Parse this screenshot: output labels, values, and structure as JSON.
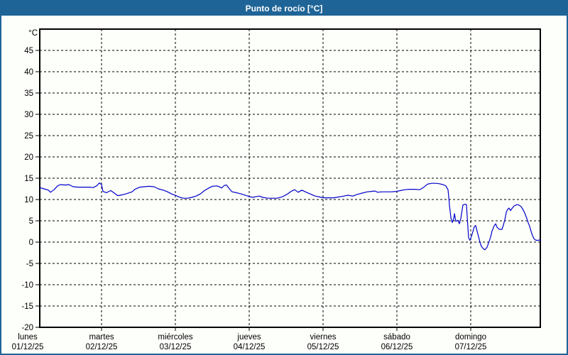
{
  "window": {
    "title": "Punto de rocío [°C]"
  },
  "colors": {
    "titlebar_bg": "#1e6496",
    "titlebar_text": "#ffffff",
    "frame_border": "#1e6496",
    "plot_bg": "#fdfffa",
    "plot_border": "#000000",
    "gridline": "#000000",
    "axis_text": "#000000",
    "line": "#0000cc"
  },
  "chart_data": {
    "type": "line",
    "title": "Punto de rocío [°C]",
    "y_unit_label": "°C",
    "ylim": [
      -20,
      50
    ],
    "y_ticks": [
      45,
      40,
      35,
      30,
      25,
      20,
      15,
      10,
      5,
      0,
      -5,
      -10,
      -15,
      -20
    ],
    "grid": "dashed",
    "legend": "none",
    "x_categories": [
      {
        "name": "lunes",
        "date": "01/12/25"
      },
      {
        "name": "martes",
        "date": "02/12/25"
      },
      {
        "name": "miércoles",
        "date": "03/12/25"
      },
      {
        "name": "jueves",
        "date": "04/12/25"
      },
      {
        "name": "viernes",
        "date": "05/12/25"
      },
      {
        "name": "sábado",
        "date": "06/12/25"
      },
      {
        "name": "domingo",
        "date": "07/12/25"
      }
    ],
    "x_range_days": [
      0.163,
      6.942
    ],
    "series": [
      {
        "name": "Punto de rocío",
        "color": "#0000cc",
        "points": [
          [
            0.163,
            12.8
          ],
          [
            0.221,
            12.5
          ],
          [
            0.279,
            12.2
          ],
          [
            0.308,
            11.7
          ],
          [
            0.356,
            12.3
          ],
          [
            0.404,
            13.2
          ],
          [
            0.442,
            13.5
          ],
          [
            0.51,
            13.4
          ],
          [
            0.558,
            13.5
          ],
          [
            0.615,
            13.0
          ],
          [
            0.683,
            12.9
          ],
          [
            0.76,
            12.9
          ],
          [
            0.827,
            12.9
          ],
          [
            0.885,
            12.8
          ],
          [
            0.933,
            13.2
          ],
          [
            0.971,
            13.9
          ],
          [
            1.0,
            13.5
          ],
          [
            1.019,
            11.9
          ],
          [
            1.067,
            11.6
          ],
          [
            1.125,
            12.1
          ],
          [
            1.173,
            11.5
          ],
          [
            1.221,
            10.9
          ],
          [
            1.279,
            11.1
          ],
          [
            1.346,
            11.4
          ],
          [
            1.413,
            11.8
          ],
          [
            1.452,
            12.4
          ],
          [
            1.519,
            12.9
          ],
          [
            1.577,
            13.0
          ],
          [
            1.644,
            13.1
          ],
          [
            1.712,
            13.0
          ],
          [
            1.769,
            12.5
          ],
          [
            1.837,
            12.2
          ],
          [
            1.894,
            11.8
          ],
          [
            1.962,
            11.2
          ],
          [
            2.0,
            11.0
          ],
          [
            2.048,
            10.6
          ],
          [
            2.106,
            10.3
          ],
          [
            2.163,
            10.3
          ],
          [
            2.221,
            10.5
          ],
          [
            2.279,
            10.8
          ],
          [
            2.337,
            11.3
          ],
          [
            2.394,
            12.1
          ],
          [
            2.452,
            12.7
          ],
          [
            2.5,
            13.1
          ],
          [
            2.558,
            13.2
          ],
          [
            2.596,
            13.0
          ],
          [
            2.625,
            12.7
          ],
          [
            2.663,
            13.3
          ],
          [
            2.692,
            13.4
          ],
          [
            2.731,
            12.5
          ],
          [
            2.769,
            11.8
          ],
          [
            2.827,
            11.6
          ],
          [
            2.894,
            11.3
          ],
          [
            2.962,
            10.9
          ],
          [
            3.0,
            10.7
          ],
          [
            3.048,
            10.5
          ],
          [
            3.096,
            10.7
          ],
          [
            3.135,
            10.8
          ],
          [
            3.183,
            10.5
          ],
          [
            3.25,
            10.3
          ],
          [
            3.317,
            10.3
          ],
          [
            3.375,
            10.3
          ],
          [
            3.442,
            10.6
          ],
          [
            3.51,
            11.2
          ],
          [
            3.567,
            11.9
          ],
          [
            3.615,
            12.3
          ],
          [
            3.663,
            11.7
          ],
          [
            3.712,
            12.2
          ],
          [
            3.76,
            11.8
          ],
          [
            3.827,
            11.3
          ],
          [
            3.894,
            10.8
          ],
          [
            3.952,
            10.6
          ],
          [
            4.01,
            10.4
          ],
          [
            4.077,
            10.4
          ],
          [
            4.144,
            10.4
          ],
          [
            4.212,
            10.6
          ],
          [
            4.279,
            10.8
          ],
          [
            4.337,
            11.0
          ],
          [
            4.404,
            10.8
          ],
          [
            4.462,
            11.2
          ],
          [
            4.529,
            11.5
          ],
          [
            4.596,
            11.8
          ],
          [
            4.654,
            11.9
          ],
          [
            4.702,
            12.0
          ],
          [
            4.74,
            11.7
          ],
          [
            4.788,
            11.8
          ],
          [
            4.856,
            11.8
          ],
          [
            4.923,
            11.8
          ],
          [
            4.99,
            11.9
          ],
          [
            5.048,
            12.1
          ],
          [
            5.106,
            12.3
          ],
          [
            5.173,
            12.4
          ],
          [
            5.24,
            12.4
          ],
          [
            5.308,
            12.3
          ],
          [
            5.365,
            12.9
          ],
          [
            5.413,
            13.6
          ],
          [
            5.471,
            13.8
          ],
          [
            5.529,
            13.8
          ],
          [
            5.577,
            13.7
          ],
          [
            5.625,
            13.5
          ],
          [
            5.663,
            13.2
          ],
          [
            5.692,
            12.3
          ],
          [
            5.702,
            10.7
          ],
          [
            5.712,
            8.5
          ],
          [
            5.731,
            5.7
          ],
          [
            5.75,
            4.6
          ],
          [
            5.769,
            5.5
          ],
          [
            5.779,
            6.7
          ],
          [
            5.798,
            4.9
          ],
          [
            5.827,
            5.1
          ],
          [
            5.846,
            4.3
          ],
          [
            5.865,
            5.5
          ],
          [
            5.894,
            8.7
          ],
          [
            5.923,
            8.9
          ],
          [
            5.942,
            8.8
          ],
          [
            5.952,
            6.0
          ],
          [
            5.971,
            1.0
          ],
          [
            5.99,
            0.4
          ],
          [
            6.01,
            1.4
          ],
          [
            6.029,
            2.5
          ],
          [
            6.048,
            3.6
          ],
          [
            6.067,
            3.9
          ],
          [
            6.096,
            1.9
          ],
          [
            6.125,
            0.0
          ],
          [
            6.144,
            -1.0
          ],
          [
            6.173,
            -1.6
          ],
          [
            6.192,
            -1.8
          ],
          [
            6.221,
            -1.2
          ],
          [
            6.25,
            0.2
          ],
          [
            6.269,
            1.2
          ],
          [
            6.288,
            2.6
          ],
          [
            6.317,
            3.8
          ],
          [
            6.337,
            4.3
          ],
          [
            6.356,
            3.5
          ],
          [
            6.385,
            3.0
          ],
          [
            6.423,
            3.0
          ],
          [
            6.442,
            4.0
          ],
          [
            6.462,
            5.3
          ],
          [
            6.481,
            7.0
          ],
          [
            6.5,
            7.7
          ],
          [
            6.519,
            8.0
          ],
          [
            6.538,
            7.4
          ],
          [
            6.558,
            7.9
          ],
          [
            6.587,
            8.5
          ],
          [
            6.625,
            8.8
          ],
          [
            6.654,
            8.7
          ],
          [
            6.683,
            8.3
          ],
          [
            6.712,
            7.5
          ],
          [
            6.731,
            6.8
          ],
          [
            6.76,
            5.5
          ],
          [
            6.779,
            4.5
          ],
          [
            6.798,
            3.7
          ],
          [
            6.817,
            2.5
          ],
          [
            6.837,
            1.5
          ],
          [
            6.856,
            0.8
          ],
          [
            6.875,
            0.5
          ],
          [
            6.904,
            0.4
          ],
          [
            6.933,
            0.5
          ],
          [
            6.942,
            0.4
          ]
        ]
      }
    ]
  }
}
